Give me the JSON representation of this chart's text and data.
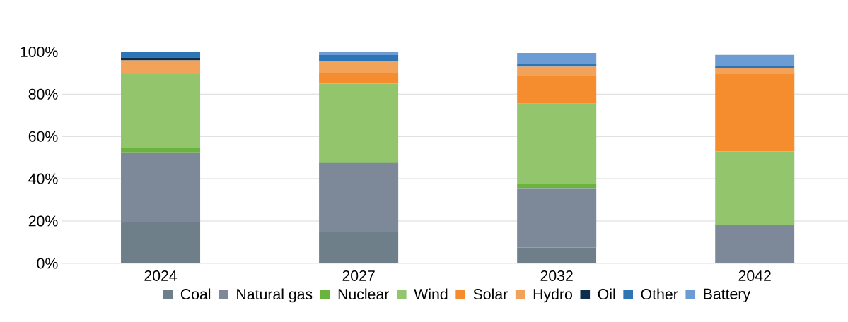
{
  "chart_data": {
    "type": "bar",
    "stacked": true,
    "categories": [
      "2024",
      "2027",
      "2032",
      "2042"
    ],
    "series": [
      {
        "name": "Coal",
        "color": "#6f7f8a",
        "values": [
          19.5,
          15,
          7.5,
          0
        ]
      },
      {
        "name": "Natural gas",
        "color": "#7d8898",
        "values": [
          33,
          32.5,
          28,
          18
        ]
      },
      {
        "name": "Nuclear",
        "color": "#6ab43e",
        "values": [
          2,
          0.5,
          2,
          0
        ]
      },
      {
        "name": "Wind",
        "color": "#93c56c",
        "values": [
          35,
          37,
          38,
          35
        ]
      },
      {
        "name": "Solar",
        "color": "#f58d2f",
        "values": [
          0,
          5,
          13,
          36.5
        ]
      },
      {
        "name": "Hydro",
        "color": "#f3a25a",
        "values": [
          6.5,
          5.5,
          4.5,
          3
        ]
      },
      {
        "name": "Oil",
        "color": "#0d2e4a",
        "values": [
          1.3,
          0,
          0,
          0
        ]
      },
      {
        "name": "Other",
        "color": "#2e75b6",
        "values": [
          2.7,
          3,
          1.5,
          0.6
        ]
      },
      {
        "name": "Battery",
        "color": "#6d9bd4",
        "values": [
          0,
          1.5,
          5,
          5.5
        ]
      }
    ],
    "ylim": [
      0,
      100
    ],
    "yticks": [
      {
        "value": 0,
        "label": "0%"
      },
      {
        "value": 20,
        "label": "20%"
      },
      {
        "value": 40,
        "label": "40%"
      },
      {
        "value": 60,
        "label": "60%"
      },
      {
        "value": 80,
        "label": "80%"
      },
      {
        "value": 100,
        "label": "100%"
      }
    ],
    "grid": "y",
    "legend": "bottom"
  }
}
